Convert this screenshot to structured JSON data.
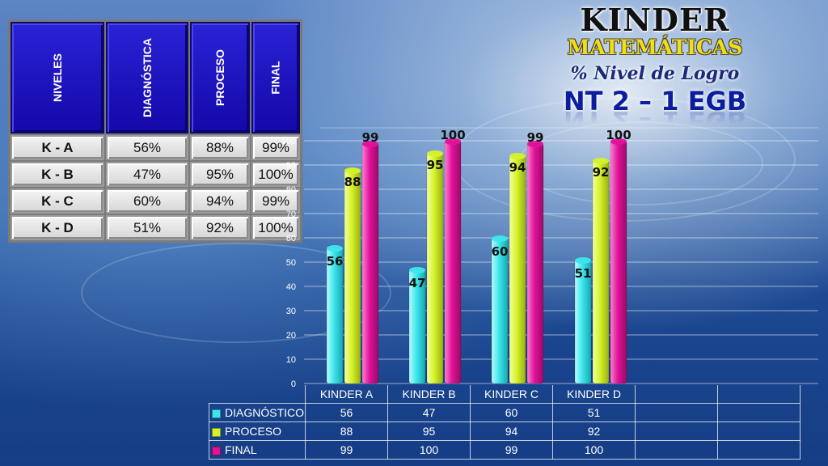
{
  "title": {
    "main": "KINDER",
    "subject": "MATEMÁTICAS",
    "metric": "% Nivel de Logro",
    "level": "NT 2 – 1 EGB"
  },
  "colors": {
    "DIAGNÓSTICO": "#3ee6ec",
    "PROCESO": "#d6f22a",
    "FINAL": "#e0129a",
    "header_blue": "#1a10c0"
  },
  "levels_table": {
    "headers": [
      "NIVELES",
      "DIAGNÓSTICA",
      "PROCESO",
      "FINAL"
    ],
    "rows": [
      [
        "K - A",
        "56%",
        "88%",
        "99%"
      ],
      [
        "K - B",
        "47%",
        "95%",
        "100%"
      ],
      [
        "K - C",
        "60%",
        "94%",
        "99%"
      ],
      [
        "K - D",
        "51%",
        "92%",
        "100%"
      ]
    ]
  },
  "chart_data": {
    "type": "bar",
    "categories": [
      "KINDER A",
      "KINDER B",
      "KINDER C",
      "KINDER D"
    ],
    "series": [
      {
        "name": "DIAGNÓSTICO",
        "values": [
          56,
          47,
          60,
          51
        ]
      },
      {
        "name": "PROCESO",
        "values": [
          88,
          95,
          94,
          92
        ]
      },
      {
        "name": "FINAL",
        "values": [
          99,
          100,
          99,
          100
        ]
      }
    ],
    "ylim": [
      0,
      100
    ],
    "yticks": [
      "0",
      "10",
      "20",
      "30",
      "40",
      "50",
      "60",
      "70",
      "80",
      "90",
      "100"
    ],
    "grid": true,
    "data_table": true
  }
}
